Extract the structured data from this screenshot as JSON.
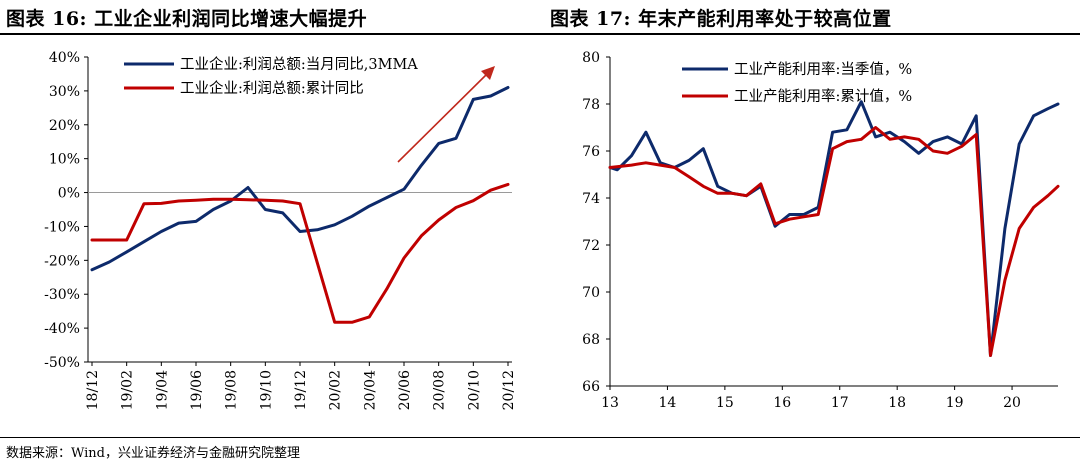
{
  "header": {
    "left_title": "图表 16:  工业企业利润同比增速大幅提升",
    "right_title": "图表 17:  年末产能利用率处于较高位置"
  },
  "footer": {
    "source": "数据来源：Wind，兴业证券经济与金融研究院整理"
  },
  "chart_data": [
    {
      "type": "line",
      "title": "",
      "xlabel": "",
      "ylabel": "",
      "x_ticks": [
        "18/12",
        "19/02",
        "19/04",
        "19/06",
        "19/08",
        "19/10",
        "19/12",
        "20/02",
        "20/04",
        "20/06",
        "20/08",
        "20/10",
        "20/12"
      ],
      "y_ticks": [
        "40%",
        "30%",
        "20%",
        "10%",
        "0%",
        "-10%",
        "-20%",
        "-30%",
        "-40%",
        "-50%"
      ],
      "ylim": [
        -50,
        40
      ],
      "xlim": [
        0,
        24
      ],
      "grid": false,
      "legend_position": "top",
      "series": [
        {
          "name": "工业企业:利润总额:当月同比,3MMA",
          "color": "#0d2a6b",
          "x": [
            0,
            1,
            2,
            3,
            4,
            5,
            6,
            7,
            8,
            9,
            10,
            11,
            12,
            13,
            14,
            15,
            16,
            17,
            18,
            19,
            20,
            21,
            22,
            23,
            24
          ],
          "y": [
            -22.8,
            -20.5,
            -17.5,
            -14.5,
            -11.5,
            -9,
            -8.5,
            -5,
            -2.5,
            1.5,
            -5,
            -6,
            -11.5,
            -11,
            -9.5,
            -7,
            -4,
            -1.5,
            1,
            8,
            14.5,
            16,
            27.5,
            28.5,
            31
          ]
        },
        {
          "name": "工业企业:利润总额:累计同比",
          "color": "#c00000",
          "x": [
            0,
            2,
            3,
            4,
            5,
            6,
            7,
            8,
            9,
            10,
            11,
            12,
            14,
            15,
            16,
            17,
            18,
            19,
            20,
            21,
            22,
            23,
            24
          ],
          "y": [
            -14,
            -14,
            -3.3,
            -3.2,
            -2.5,
            -2.3,
            -2,
            -2,
            -2.1,
            -2.3,
            -2.5,
            -3.3,
            -38.3,
            -38.3,
            -36.7,
            -28.5,
            -19.3,
            -12.8,
            -8.1,
            -4.4,
            -2.4,
            0.7,
            2.4
          ]
        }
      ],
      "annotation": "trend-arrow"
    },
    {
      "type": "line",
      "title": "",
      "xlabel": "",
      "ylabel": "",
      "x_ticks": [
        "13",
        "14",
        "15",
        "16",
        "17",
        "18",
        "19",
        "20"
      ],
      "y_ticks": [
        "80",
        "78",
        "76",
        "74",
        "72",
        "70",
        "68",
        "66"
      ],
      "ylim": [
        66,
        80
      ],
      "xlim": [
        13,
        20.8
      ],
      "grid": false,
      "legend_position": "top-left",
      "series": [
        {
          "name": "工业产能利用率:当季值，%",
          "color": "#0d2a6b",
          "x": [
            13,
            13.125,
            13.375,
            13.625,
            13.875,
            14.125,
            14.375,
            14.625,
            14.875,
            15.125,
            15.375,
            15.625,
            15.875,
            16.125,
            16.375,
            16.625,
            16.875,
            17.125,
            17.375,
            17.625,
            17.875,
            18.125,
            18.375,
            18.625,
            18.875,
            19.125,
            19.375,
            19.625,
            19.875,
            20.125,
            20.375,
            20.625,
            20.8
          ],
          "y": [
            75.3,
            75.2,
            75.8,
            76.8,
            75.5,
            75.3,
            75.6,
            76.1,
            74.5,
            74.2,
            74.1,
            74.5,
            72.8,
            73.3,
            73.3,
            73.6,
            76.8,
            76.9,
            78.1,
            76.6,
            76.8,
            76.4,
            75.9,
            76.4,
            76.6,
            76.3,
            77.5,
            67.3,
            72.7,
            76.3,
            77.5,
            77.8,
            78
          ]
        },
        {
          "name": "工业产能利用率:累计值，%",
          "color": "#c00000",
          "x": [
            13,
            13.375,
            13.625,
            13.875,
            14.125,
            14.375,
            14.625,
            14.875,
            15.125,
            15.375,
            15.625,
            15.875,
            16.125,
            16.375,
            16.625,
            16.875,
            17.125,
            17.375,
            17.625,
            17.875,
            18.125,
            18.375,
            18.625,
            18.875,
            19.125,
            19.375,
            19.625,
            19.875,
            20.125,
            20.375,
            20.625,
            20.8
          ],
          "y": [
            75.3,
            75.4,
            75.5,
            75.4,
            75.3,
            74.9,
            74.5,
            74.2,
            74.2,
            74.1,
            74.6,
            72.9,
            73.1,
            73.2,
            73.3,
            76.1,
            76.4,
            76.5,
            77,
            76.5,
            76.6,
            76.5,
            76,
            75.9,
            76.2,
            76.7,
            67.3,
            70.5,
            72.7,
            73.6,
            74.1,
            74.5
          ]
        }
      ]
    }
  ]
}
